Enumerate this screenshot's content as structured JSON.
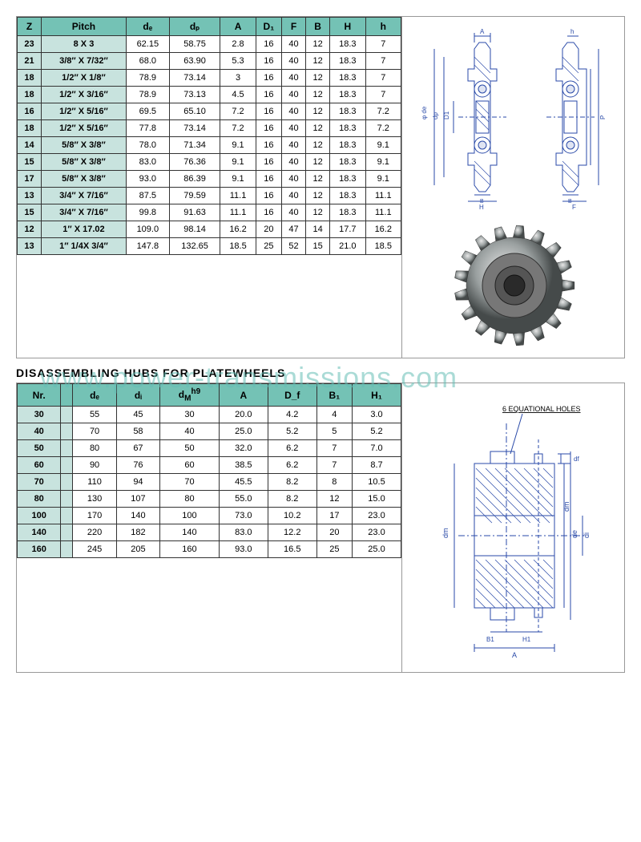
{
  "watermark": "www.power-transmissions.com",
  "section2_title": "DISASSEMBLING HUBS FOR PLATEWHEELS",
  "colors": {
    "header_bg": "#74c2b5",
    "rowhead_bg": "#c8e3de",
    "border": "#333333",
    "panel_border": "#999999",
    "diagram_line": "#2a4aa8",
    "diagram_hatch": "#2a4aa8",
    "watermark": "rgba(100,190,180,0.55)"
  },
  "table1": {
    "headers": [
      "Z",
      "Pitch",
      "dₑ",
      "dₚ",
      "A",
      "D₁",
      "F",
      "B",
      "H",
      "h"
    ],
    "rows": [
      [
        "23",
        "8 X 3",
        "62.15",
        "58.75",
        "2.8",
        "16",
        "40",
        "12",
        "18.3",
        "7"
      ],
      [
        "21",
        "3/8″ X 7/32″",
        "68.0",
        "63.90",
        "5.3",
        "16",
        "40",
        "12",
        "18.3",
        "7"
      ],
      [
        "18",
        "1/2″ X 1/8″",
        "78.9",
        "73.14",
        "3",
        "16",
        "40",
        "12",
        "18.3",
        "7"
      ],
      [
        "18",
        "1/2″ X 3/16″",
        "78.9",
        "73.13",
        "4.5",
        "16",
        "40",
        "12",
        "18.3",
        "7"
      ],
      [
        "16",
        "1/2″ X 5/16″",
        "69.5",
        "65.10",
        "7.2",
        "16",
        "40",
        "12",
        "18.3",
        "7.2"
      ],
      [
        "18",
        "1/2″ X 5/16″",
        "77.8",
        "73.14",
        "7.2",
        "16",
        "40",
        "12",
        "18.3",
        "7.2"
      ],
      [
        "14",
        "5/8″ X 3/8″",
        "78.0",
        "71.34",
        "9.1",
        "16",
        "40",
        "12",
        "18.3",
        "9.1"
      ],
      [
        "15",
        "5/8″ X 3/8″",
        "83.0",
        "76.36",
        "9.1",
        "16",
        "40",
        "12",
        "18.3",
        "9.1"
      ],
      [
        "17",
        "5/8″ X 3/8″",
        "93.0",
        "86.39",
        "9.1",
        "16",
        "40",
        "12",
        "18.3",
        "9.1"
      ],
      [
        "13",
        "3/4″ X 7/16″",
        "87.5",
        "79.59",
        "11.1",
        "16",
        "40",
        "12",
        "18.3",
        "11.1"
      ],
      [
        "15",
        "3/4″ X 7/16″",
        "99.8",
        "91.63",
        "11.1",
        "16",
        "40",
        "12",
        "18.3",
        "11.1"
      ],
      [
        "12",
        "1″ X 17.02",
        "109.0",
        "98.14",
        "16.2",
        "20",
        "47",
        "14",
        "17.7",
        "16.2"
      ],
      [
        "13",
        "1″ 1/4X 3/4″",
        "147.8",
        "132.65",
        "18.5",
        "25",
        "52",
        "15",
        "21.0",
        "18.5"
      ]
    ]
  },
  "table2": {
    "headers": [
      "Nr.",
      "",
      "dₑ",
      "dᵢ",
      "d_M^h9",
      "A",
      "D_f",
      "B₁",
      "H₁"
    ],
    "rows": [
      [
        "30",
        "",
        "55",
        "45",
        "30",
        "20.0",
        "4.2",
        "4",
        "3.0"
      ],
      [
        "40",
        "",
        "70",
        "58",
        "40",
        "25.0",
        "5.2",
        "5",
        "5.2"
      ],
      [
        "50",
        "",
        "80",
        "67",
        "50",
        "32.0",
        "6.2",
        "7",
        "7.0"
      ],
      [
        "60",
        "",
        "90",
        "76",
        "60",
        "38.5",
        "6.2",
        "7",
        "8.7"
      ],
      [
        "70",
        "",
        "110",
        "94",
        "70",
        "45.5",
        "8.2",
        "8",
        "10.5"
      ],
      [
        "80",
        "",
        "130",
        "107",
        "80",
        "55.0",
        "8.2",
        "12",
        "15.0"
      ],
      [
        "100",
        "",
        "170",
        "140",
        "100",
        "73.0",
        "10.2",
        "17",
        "23.0"
      ],
      [
        "140",
        "",
        "220",
        "182",
        "140",
        "83.0",
        "12.2",
        "20",
        "23.0"
      ],
      [
        "160",
        "",
        "245",
        "205",
        "160",
        "93.0",
        "16.5",
        "25",
        "25.0"
      ]
    ]
  },
  "diagram1": {
    "labels": [
      "A",
      "h",
      "φ de",
      "dp",
      "D1",
      "F",
      "B",
      "H",
      "P"
    ],
    "holes_label": "6 EQUATIONAL HOLES"
  },
  "diagram2": {
    "labels": [
      "dm",
      "de",
      "di",
      "df",
      "B1",
      "H1",
      "A"
    ]
  }
}
